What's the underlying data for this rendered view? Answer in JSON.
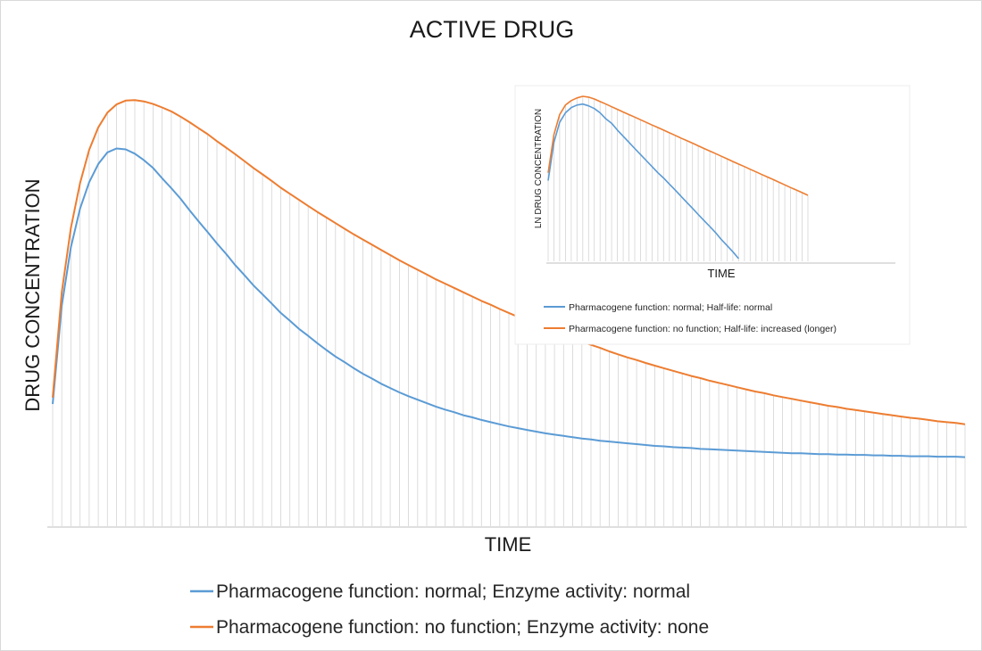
{
  "colors": {
    "series_normal": "#5b9bd5",
    "series_no_function": "#ed7d31",
    "drop_lines": "#d4d4d4",
    "axis": "#bfbfbf"
  },
  "chart_data": [
    {
      "id": "main",
      "type": "line",
      "title": "ACTIVE DRUG",
      "xlabel": "TIME",
      "ylabel": "DRUG CONCENTRATION",
      "grid": false,
      "drop_lines": true,
      "legend_position": "bottom",
      "ylim": [
        0,
        100
      ],
      "x": [
        0,
        1,
        2,
        3,
        4,
        5,
        6,
        7,
        8,
        9,
        10,
        11,
        12,
        13,
        14,
        15,
        16,
        17,
        18,
        19,
        20,
        21,
        22,
        23,
        24,
        25,
        26,
        27,
        28,
        29,
        30,
        31,
        32,
        33,
        34,
        35,
        36,
        37,
        38,
        39,
        40,
        41,
        42,
        43,
        44,
        45,
        46,
        47,
        48,
        49,
        50,
        51,
        52,
        53,
        54,
        55,
        56,
        57,
        58,
        59,
        60,
        61,
        62,
        63,
        64,
        65,
        66,
        67,
        68,
        69,
        70,
        71,
        72,
        73,
        74,
        75,
        76,
        77,
        78,
        79,
        80,
        81,
        82,
        83,
        84,
        85,
        86,
        87,
        88,
        89,
        90,
        91,
        92,
        93,
        94,
        95,
        96,
        97,
        98,
        99,
        100
      ],
      "series": [
        {
          "name": "Pharmacogene function: normal; Enzyme activity: normal",
          "color": "#5b9bd5",
          "values": [
            28.3,
            51.1,
            64.6,
            73.6,
            79.7,
            83.9,
            86.6,
            87.5,
            87.3,
            86.3,
            84.8,
            83.0,
            80.6,
            78.3,
            75.9,
            73.2,
            70.6,
            68.1,
            65.5,
            63.1,
            60.5,
            58.2,
            55.8,
            53.7,
            51.6,
            49.4,
            47.6,
            45.7,
            44.1,
            42.4,
            40.8,
            39.3,
            38.0,
            36.6,
            35.3,
            34.2,
            33.0,
            32.0,
            31.0,
            30.1,
            29.3,
            28.5,
            27.7,
            27.0,
            26.4,
            25.7,
            25.2,
            24.6,
            24.1,
            23.6,
            23.1,
            22.7,
            22.3,
            21.9,
            21.5,
            21.2,
            20.9,
            20.6,
            20.3,
            20.1,
            19.8,
            19.6,
            19.4,
            19.2,
            19.0,
            18.8,
            18.6,
            18.5,
            18.3,
            18.2,
            18.1,
            17.9,
            17.8,
            17.7,
            17.6,
            17.5,
            17.4,
            17.3,
            17.2,
            17.1,
            17.0,
            16.9,
            16.9,
            16.8,
            16.7,
            16.7,
            16.6,
            16.6,
            16.5,
            16.5,
            16.4,
            16.4,
            16.3,
            16.3,
            16.2,
            16.2,
            16.2,
            16.1,
            16.1,
            16.1,
            16.0
          ]
        },
        {
          "name": "Pharmacogene function: no function; Enzyme activity: none",
          "color": "#ed7d31",
          "values": [
            29.8,
            54.2,
            69.1,
            79.5,
            87.2,
            92.4,
            95.8,
            97.7,
            98.6,
            98.7,
            98.4,
            97.8,
            97.0,
            96.1,
            94.9,
            93.6,
            92.2,
            90.8,
            89.2,
            87.7,
            86.2,
            84.6,
            83.0,
            81.5,
            80.0,
            78.4,
            77.0,
            75.6,
            74.2,
            72.8,
            71.5,
            70.2,
            68.9,
            67.6,
            66.4,
            65.2,
            64.0,
            62.8,
            61.6,
            60.5,
            59.4,
            58.3,
            57.2,
            56.2,
            55.2,
            54.2,
            53.2,
            52.2,
            51.3,
            50.3,
            49.4,
            48.5,
            47.6,
            46.8,
            45.9,
            45.1,
            44.3,
            43.5,
            42.7,
            42.0,
            41.3,
            40.5,
            39.8,
            39.1,
            38.5,
            37.8,
            37.2,
            36.6,
            36.0,
            35.4,
            34.8,
            34.3,
            33.7,
            33.2,
            32.7,
            32.2,
            31.7,
            31.2,
            30.8,
            30.3,
            29.9,
            29.5,
            29.1,
            28.7,
            28.3,
            27.9,
            27.6,
            27.2,
            26.9,
            26.6,
            26.3,
            26.0,
            25.7,
            25.4,
            25.1,
            24.9,
            24.6,
            24.3,
            24.1,
            23.9,
            23.6
          ]
        }
      ]
    },
    {
      "id": "inset",
      "type": "line",
      "title": "",
      "xlabel": "TIME",
      "ylabel": "LN DRUG  CONCENTRATION",
      "grid": false,
      "drop_lines": true,
      "legend_position": "bottom",
      "ylim": [
        0,
        100
      ],
      "x": [
        0,
        1,
        2,
        3,
        4,
        5,
        6,
        7,
        8,
        9,
        10,
        11,
        12,
        13,
        14,
        15,
        16,
        17,
        18,
        19,
        20,
        21,
        22,
        23,
        24,
        25,
        26,
        27,
        28,
        29,
        30,
        31,
        32,
        33,
        34,
        35,
        36,
        37,
        38,
        39,
        40,
        41,
        42,
        43,
        44,
        45,
        46,
        47,
        48,
        49,
        50,
        51,
        52,
        53,
        54,
        55,
        56,
        57,
        58,
        59,
        60
      ],
      "series": [
        {
          "name": "Pharmacogene function: normal; Half-life: normal",
          "color": "#5b9bd5",
          "values": [
            48.9,
            72.1,
            84.2,
            90.0,
            93.2,
            94.7,
            95.3,
            94.2,
            92.6,
            90.0,
            86.3,
            83.7,
            79.5,
            75.8,
            72.1,
            68.4,
            64.7,
            61.1,
            57.4,
            53.7,
            50.5,
            46.8,
            43.2,
            39.5,
            35.8,
            32.1,
            28.4,
            24.7,
            21.1,
            17.4,
            13.2,
            9.5,
            5.8,
            1.6,
            0,
            0,
            0,
            0,
            0,
            0,
            0,
            0,
            0,
            0,
            0,
            0,
            0,
            0,
            0,
            0,
            0,
            0,
            0,
            0,
            0,
            0,
            0,
            0,
            0,
            0,
            0
          ],
          "count": 34
        },
        {
          "name": "Pharmacogene function: no function; Half-life: increased (longer)",
          "color": "#ed7d31",
          "values": [
            53.7,
            76.8,
            88.9,
            94.7,
            97.4,
            99.0,
            100.0,
            99.5,
            98.4,
            96.8,
            95.3,
            93.7,
            92.1,
            90.5,
            88.9,
            87.4,
            85.8,
            84.2,
            82.6,
            81.1,
            79.5,
            77.9,
            76.3,
            74.7,
            73.2,
            71.6,
            70.0,
            68.4,
            66.8,
            65.3,
            63.7,
            62.1,
            60.5,
            58.9,
            57.4,
            55.8,
            54.2,
            52.6,
            51.1,
            49.5,
            47.9,
            46.3,
            44.7,
            43.2,
            41.6,
            40.0,
            0,
            0,
            0,
            0,
            0,
            0,
            0,
            0,
            0,
            0,
            0,
            0,
            0,
            0,
            0
          ],
          "count": 46
        }
      ]
    }
  ]
}
